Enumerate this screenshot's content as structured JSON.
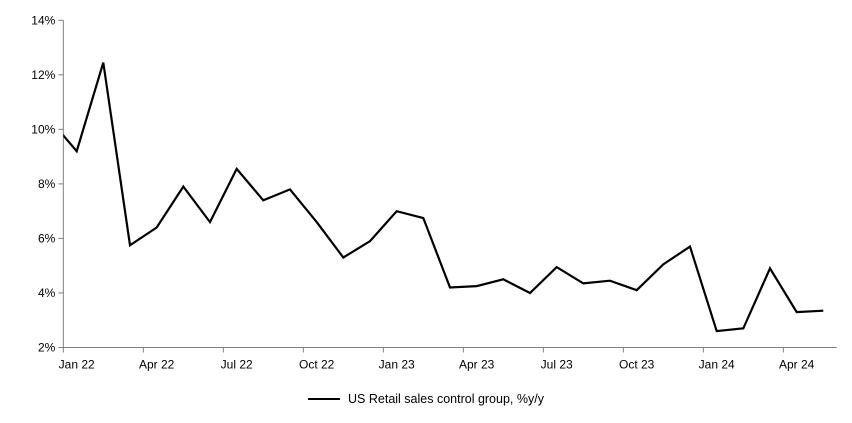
{
  "chart_data": {
    "type": "line",
    "title": "",
    "xlabel": "",
    "ylabel": "",
    "x": [
      "Dec 21",
      "Jan 22",
      "Feb 22",
      "Mar 22",
      "Apr 22",
      "May 22",
      "Jun 22",
      "Jul 22",
      "Aug 22",
      "Sep 22",
      "Oct 22",
      "Nov 22",
      "Dec 22",
      "Jan 23",
      "Feb 23",
      "Mar 23",
      "Apr 23",
      "May 23",
      "Jun 23",
      "Jul 23",
      "Aug 23",
      "Sep 23",
      "Oct 23",
      "Nov 23",
      "Dec 23",
      "Jan 24",
      "Feb 24",
      "Mar 24",
      "Apr 24",
      "May 24"
    ],
    "series": [
      {
        "name": "US Retail sales control group, %y/y",
        "values": [
          10.35,
          9.2,
          12.45,
          5.75,
          6.4,
          7.9,
          6.6,
          8.55,
          7.4,
          7.8,
          6.6,
          5.3,
          5.9,
          7.0,
          6.75,
          4.2,
          4.25,
          4.5,
          4.0,
          4.95,
          4.35,
          4.45,
          4.1,
          5.05,
          5.7,
          2.6,
          2.7,
          4.9,
          3.3,
          3.35
        ]
      }
    ],
    "first_point_clipped_at_left_spine": true,
    "ylim": [
      2,
      14
    ],
    "yticks": [
      {
        "value": 2,
        "label": "2%"
      },
      {
        "value": 4,
        "label": "4%"
      },
      {
        "value": 6,
        "label": "6%"
      },
      {
        "value": 8,
        "label": "8%"
      },
      {
        "value": 10,
        "label": "10%"
      },
      {
        "value": 12,
        "label": "12%"
      },
      {
        "value": 14,
        "label": "14%"
      }
    ],
    "xticks": [
      {
        "index": 1,
        "label": "Jan 22"
      },
      {
        "index": 4,
        "label": "Apr 22"
      },
      {
        "index": 7,
        "label": "Jul 22"
      },
      {
        "index": 10,
        "label": "Oct 22"
      },
      {
        "index": 13,
        "label": "Jan 23"
      },
      {
        "index": 16,
        "label": "Apr 23"
      },
      {
        "index": 19,
        "label": "Jul 23"
      },
      {
        "index": 22,
        "label": "Oct 23"
      },
      {
        "index": 25,
        "label": "Jan 24"
      },
      {
        "index": 28,
        "label": "Apr 24"
      }
    ],
    "grid": false,
    "legend_position": "bottom"
  },
  "legend": {
    "label": "US Retail sales control group, %y/y"
  },
  "colors": {
    "line": "#000000",
    "axis": "#808080",
    "text": "#000000",
    "background": "#ffffff"
  }
}
